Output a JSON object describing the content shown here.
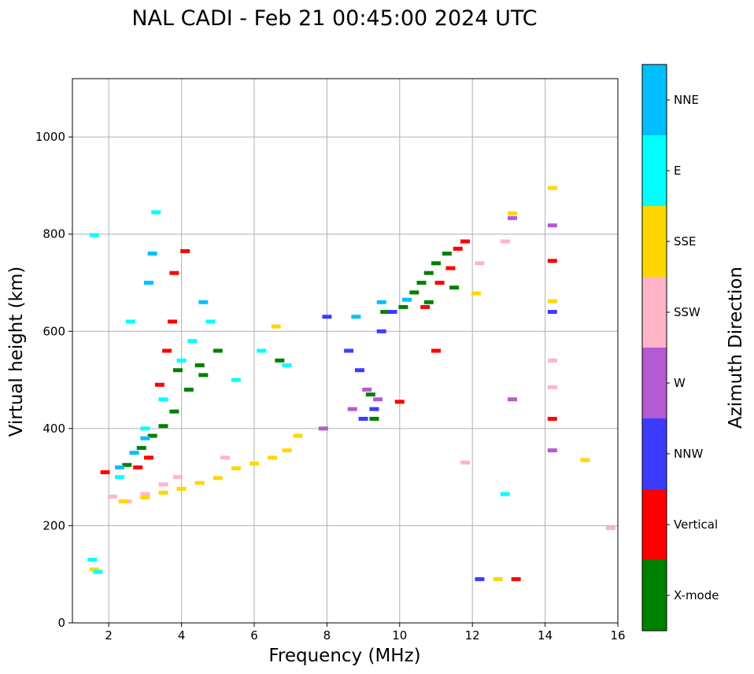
{
  "chart_data": {
    "type": "scatter",
    "title": "NAL CADI - Feb 21 00:45:00 2024 UTC",
    "xlabel": "Frequency (MHz)",
    "ylabel": "Virtual height (km)",
    "xlim": [
      1,
      16
    ],
    "ylim": [
      0,
      1120
    ],
    "xticks": [
      2,
      4,
      6,
      8,
      10,
      12,
      14,
      16
    ],
    "yticks": [
      0,
      200,
      400,
      600,
      800,
      1000
    ],
    "grid": true,
    "colorbar": {
      "label": "Azimuth Direction",
      "categories": [
        {
          "name": "X-mode",
          "color": "#008000"
        },
        {
          "name": "Vertical",
          "color": "#ff0000"
        },
        {
          "name": "NNW",
          "color": "#3c3cff"
        },
        {
          "name": "W",
          "color": "#b45ad2"
        },
        {
          "name": "SSW",
          "color": "#ffb4c8"
        },
        {
          "name": "SSE",
          "color": "#ffd700"
        },
        {
          "name": "E",
          "color": "#00ffff"
        },
        {
          "name": "NNE",
          "color": "#00bfff"
        }
      ]
    },
    "series": [
      {
        "name": "X-mode",
        "points": [
          [
            2.5,
            325
          ],
          [
            2.9,
            360
          ],
          [
            3.2,
            385
          ],
          [
            3.5,
            405
          ],
          [
            3.8,
            435
          ],
          [
            4.2,
            480
          ],
          [
            4.5,
            530
          ],
          [
            5.0,
            560
          ],
          [
            6.7,
            540
          ],
          [
            9.2,
            470
          ],
          [
            9.3,
            420
          ],
          [
            9.6,
            640
          ],
          [
            10.1,
            650
          ],
          [
            10.4,
            680
          ],
          [
            10.6,
            700
          ],
          [
            10.8,
            720
          ],
          [
            11.0,
            740
          ],
          [
            11.3,
            760
          ],
          [
            11.5,
            690
          ],
          [
            10.8,
            660
          ],
          [
            3.9,
            520
          ],
          [
            4.6,
            510
          ]
        ]
      },
      {
        "name": "Vertical",
        "points": [
          [
            1.9,
            310
          ],
          [
            2.8,
            320
          ],
          [
            3.1,
            340
          ],
          [
            3.4,
            490
          ],
          [
            3.6,
            560
          ],
          [
            3.75,
            620
          ],
          [
            3.8,
            720
          ],
          [
            4.1,
            765
          ],
          [
            10.0,
            455
          ],
          [
            10.7,
            650
          ],
          [
            11.1,
            700
          ],
          [
            11.4,
            730
          ],
          [
            11.6,
            770
          ],
          [
            11.8,
            785
          ],
          [
            14.2,
            745
          ],
          [
            14.2,
            420
          ],
          [
            13.2,
            90
          ],
          [
            11.0,
            560
          ]
        ]
      },
      {
        "name": "NNW",
        "points": [
          [
            8.9,
            520
          ],
          [
            9.0,
            420
          ],
          [
            9.3,
            440
          ],
          [
            9.5,
            600
          ],
          [
            9.8,
            640
          ],
          [
            14.2,
            640
          ],
          [
            12.2,
            90
          ],
          [
            8.6,
            560
          ],
          [
            8.0,
            630
          ]
        ]
      },
      {
        "name": "W",
        "points": [
          [
            7.9,
            400
          ],
          [
            8.7,
            440
          ],
          [
            9.1,
            480
          ],
          [
            9.4,
            460
          ],
          [
            13.1,
            460
          ],
          [
            14.2,
            355
          ],
          [
            14.2,
            818
          ],
          [
            13.1,
            833
          ]
        ]
      },
      {
        "name": "SSW",
        "points": [
          [
            2.1,
            260
          ],
          [
            2.5,
            250
          ],
          [
            3.0,
            265
          ],
          [
            3.5,
            285
          ],
          [
            3.9,
            300
          ],
          [
            5.2,
            340
          ],
          [
            12.9,
            785
          ],
          [
            14.2,
            540
          ],
          [
            14.2,
            485
          ],
          [
            15.8,
            195
          ],
          [
            11.8,
            330
          ],
          [
            12.2,
            740
          ]
        ]
      },
      {
        "name": "SSE",
        "points": [
          [
            2.4,
            250
          ],
          [
            3.0,
            258
          ],
          [
            3.5,
            268
          ],
          [
            4.0,
            276
          ],
          [
            4.5,
            288
          ],
          [
            5.0,
            298
          ],
          [
            5.5,
            318
          ],
          [
            6.0,
            328
          ],
          [
            6.5,
            340
          ],
          [
            6.9,
            355
          ],
          [
            7.2,
            385
          ],
          [
            6.6,
            610
          ],
          [
            13.1,
            843
          ],
          [
            14.2,
            895
          ],
          [
            14.2,
            662
          ],
          [
            15.1,
            335
          ],
          [
            12.7,
            90
          ],
          [
            1.6,
            110
          ],
          [
            12.1,
            678
          ]
        ]
      },
      {
        "name": "E",
        "points": [
          [
            1.55,
            130
          ],
          [
            1.7,
            105
          ],
          [
            2.3,
            300
          ],
          [
            2.6,
            620
          ],
          [
            3.0,
            400
          ],
          [
            3.5,
            460
          ],
          [
            4.0,
            540
          ],
          [
            4.3,
            580
          ],
          [
            4.8,
            620
          ],
          [
            5.5,
            500
          ],
          [
            6.2,
            560
          ],
          [
            6.9,
            530
          ],
          [
            12.9,
            265
          ],
          [
            3.3,
            845
          ],
          [
            1.6,
            798
          ]
        ]
      },
      {
        "name": "NNE",
        "points": [
          [
            2.3,
            320
          ],
          [
            2.7,
            350
          ],
          [
            3.0,
            380
          ],
          [
            3.2,
            760
          ],
          [
            3.1,
            700
          ],
          [
            4.6,
            660
          ],
          [
            8.8,
            630
          ],
          [
            9.5,
            660
          ],
          [
            10.2,
            665
          ]
        ]
      }
    ]
  }
}
